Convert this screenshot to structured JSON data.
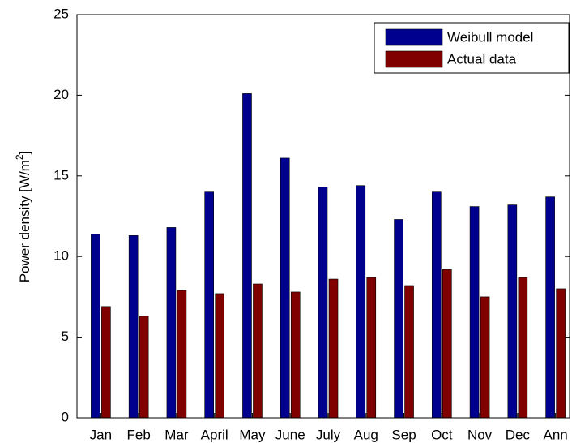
{
  "chart_data": {
    "type": "bar",
    "y_label": "Power density [W/m²]",
    "categories": [
      "Jan",
      "Feb",
      "Mar",
      "April",
      "May",
      "June",
      "July",
      "Aug",
      "Sep",
      "Oct",
      "Nov",
      "Dec",
      "Ann"
    ],
    "series": [
      {
        "name": "Weibull model",
        "color": "#00008f",
        "values": [
          11.4,
          11.3,
          11.8,
          14.0,
          20.1,
          16.1,
          14.3,
          14.4,
          12.3,
          14.0,
          13.1,
          13.2,
          13.7
        ]
      },
      {
        "name": "Actual data",
        "color": "#800000",
        "values": [
          6.9,
          6.3,
          7.9,
          7.7,
          8.3,
          7.8,
          8.6,
          8.7,
          8.2,
          9.2,
          7.5,
          8.7,
          8.0
        ]
      }
    ],
    "ylim": [
      0,
      25
    ],
    "yticks": [
      0,
      5,
      10,
      15,
      20,
      25
    ],
    "legend": "northeast"
  }
}
